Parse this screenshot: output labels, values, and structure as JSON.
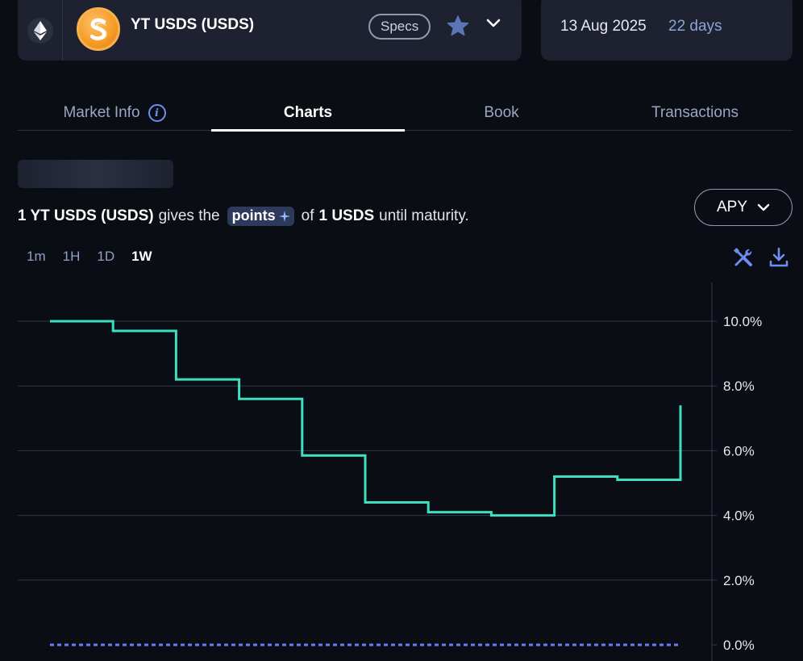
{
  "header": {
    "network_icon": "ethereum-icon",
    "token_icon": "usds-sky-logo",
    "title": "YT USDS (USDS)",
    "specs_label": "Specs",
    "star_icon": "star-icon",
    "menu_icon": "chevron-down-icon",
    "maturity_date": "13 Aug 2025",
    "days_left": "22 days"
  },
  "tabs": [
    {
      "label": "Market Info",
      "active": false
    },
    {
      "label": "Charts",
      "active": true
    },
    {
      "label": "Book",
      "active": false
    },
    {
      "label": "Transactions",
      "active": false
    }
  ],
  "description": {
    "amount": "1 YT USDS (USDS)",
    "text1": "gives the",
    "pill": "points",
    "text2": "of",
    "underlying": "1 USDS",
    "text3": "until maturity."
  },
  "metric_selector": {
    "label": "APY"
  },
  "timeframes": [
    {
      "label": "1m",
      "active": false
    },
    {
      "label": "1H",
      "active": false
    },
    {
      "label": "1D",
      "active": false
    },
    {
      "label": "1W",
      "active": true
    }
  ],
  "toolbar_icons": [
    "tools-icon",
    "download-icon"
  ],
  "colors": {
    "line": "#3ddfc0",
    "baseline": "#6b7cf5",
    "grid": "#2a3a4a",
    "accent": "#6f8cf0"
  },
  "chart_data": {
    "type": "line",
    "step": true,
    "y_unit": "%",
    "ylim": [
      0,
      10.5
    ],
    "yticks": [
      "0.0%",
      "2.0%",
      "4.0%",
      "6.0%",
      "8.0%",
      "10.0%"
    ],
    "ytick_values": [
      0,
      2,
      4,
      6,
      8,
      10
    ],
    "grid": true,
    "series": [
      {
        "values": [
          10.0,
          9.7,
          8.2,
          7.6,
          5.85,
          4.4,
          4.1,
          4.0,
          5.2,
          5.1,
          7.4
        ],
        "style": "solid"
      },
      {
        "values": [
          0,
          0,
          0,
          0,
          0,
          0,
          0,
          0,
          0,
          0,
          0
        ],
        "style": "dashed"
      }
    ]
  }
}
